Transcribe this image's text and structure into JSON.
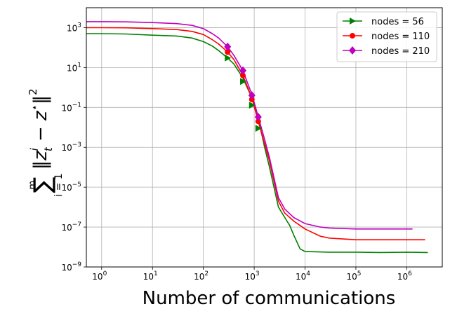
{
  "chart_data": {
    "type": "line",
    "title": "",
    "xlabel": "Number of communications",
    "ylabel_parts": {
      "sum_top": "m",
      "sum_symbol": "∑",
      "sum_bottom": "i = 1",
      "norm_open": "‖",
      "var": "z",
      "var_sub": "t",
      "var_sup": "i",
      "minus": " − ",
      "opt": "z",
      "opt_sup": "⋆",
      "norm_close": "‖",
      "power": "2"
    },
    "x_scale": "log",
    "y_scale": "log",
    "xlim": [
      0.5,
      5000000
    ],
    "ylim": [
      1e-09,
      10000
    ],
    "x_ticks": [
      {
        "value": 1,
        "base": "10",
        "exp": "0"
      },
      {
        "value": 10,
        "base": "10",
        "exp": "1"
      },
      {
        "value": 100,
        "base": "10",
        "exp": "2"
      },
      {
        "value": 1000,
        "base": "10",
        "exp": "3"
      },
      {
        "value": 10000,
        "base": "10",
        "exp": "4"
      },
      {
        "value": 100000,
        "base": "10",
        "exp": "5"
      },
      {
        "value": 1000000,
        "base": "10",
        "exp": "6"
      }
    ],
    "y_ticks": [
      {
        "value": 1e-09,
        "base": "10",
        "exp": "−9"
      },
      {
        "value": 1e-07,
        "base": "10",
        "exp": "−7"
      },
      {
        "value": 1e-05,
        "base": "10",
        "exp": "−5"
      },
      {
        "value": 0.001,
        "base": "10",
        "exp": "−3"
      },
      {
        "value": 0.1,
        "base": "10",
        "exp": "−1"
      },
      {
        "value": 10,
        "base": "10",
        "exp": "1"
      },
      {
        "value": 1000,
        "base": "10",
        "exp": "3"
      }
    ],
    "grid": true,
    "legend_position": "top-right",
    "series": [
      {
        "name": "nodes = 56",
        "color": "#008000",
        "marker": "triangle-right",
        "x": [
          0.5,
          1,
          3,
          10,
          30,
          60,
          100,
          150,
          200,
          300,
          400,
          600,
          900,
          1200,
          1600,
          2000,
          3000,
          4000,
          5000,
          6000,
          8000,
          10000,
          30000,
          100000,
          300000,
          1000000,
          2600000
        ],
        "y": [
          500,
          500,
          480,
          420,
          380,
          300,
          200,
          120,
          70,
          30,
          15,
          3,
          0.3,
          0.03,
          0.001,
          0.0001,
          1e-06,
          3e-07,
          1.2e-07,
          4e-08,
          8e-09,
          6e-09,
          5.5e-09,
          5.5e-09,
          5.3e-09,
          5.5e-09,
          5.3e-09
        ],
        "marker_points": [
          {
            "x": 300,
            "y": 30
          },
          {
            "x": 600,
            "y": 2
          },
          {
            "x": 900,
            "y": 0.13
          },
          {
            "x": 1200,
            "y": 0.009
          }
        ]
      },
      {
        "name": "nodes = 110",
        "color": "#ff0000",
        "marker": "circle",
        "x": [
          0.5,
          1,
          3,
          10,
          30,
          60,
          100,
          150,
          200,
          300,
          400,
          600,
          900,
          1200,
          1600,
          2000,
          3000,
          4000,
          6000,
          10000,
          20000,
          30000,
          100000,
          300000,
          1000000,
          2300000
        ],
        "y": [
          1000,
          1000,
          980,
          900,
          800,
          650,
          450,
          250,
          150,
          60,
          25,
          4,
          0.3,
          0.02,
          0.0015,
          0.0002,
          2e-06,
          5e-07,
          2e-07,
          8e-08,
          3.5e-08,
          2.8e-08,
          2.3e-08,
          2.3e-08,
          2.3e-08,
          2.3e-08
        ],
        "marker_points": [
          {
            "x": 300,
            "y": 60
          },
          {
            "x": 600,
            "y": 4
          },
          {
            "x": 900,
            "y": 0.25
          },
          {
            "x": 1200,
            "y": 0.02
          }
        ]
      },
      {
        "name": "nodes = 210",
        "color": "#bf00bf",
        "marker": "diamond",
        "x": [
          0.5,
          1,
          3,
          10,
          30,
          60,
          100,
          150,
          200,
          300,
          400,
          600,
          900,
          1200,
          1600,
          2000,
          3000,
          4000,
          6000,
          10000,
          20000,
          30000,
          100000,
          300000,
          1000000,
          1300000
        ],
        "y": [
          2000,
          2000,
          1950,
          1800,
          1600,
          1300,
          900,
          500,
          300,
          110,
          40,
          7,
          0.45,
          0.035,
          0.0025,
          0.0003,
          3e-06,
          8e-07,
          3e-07,
          1.5e-07,
          1e-07,
          9e-08,
          8e-08,
          8e-08,
          8e-08,
          8e-08
        ],
        "marker_points": [
          {
            "x": 300,
            "y": 110
          },
          {
            "x": 600,
            "y": 7
          },
          {
            "x": 900,
            "y": 0.4
          },
          {
            "x": 1200,
            "y": 0.033
          }
        ]
      }
    ]
  }
}
